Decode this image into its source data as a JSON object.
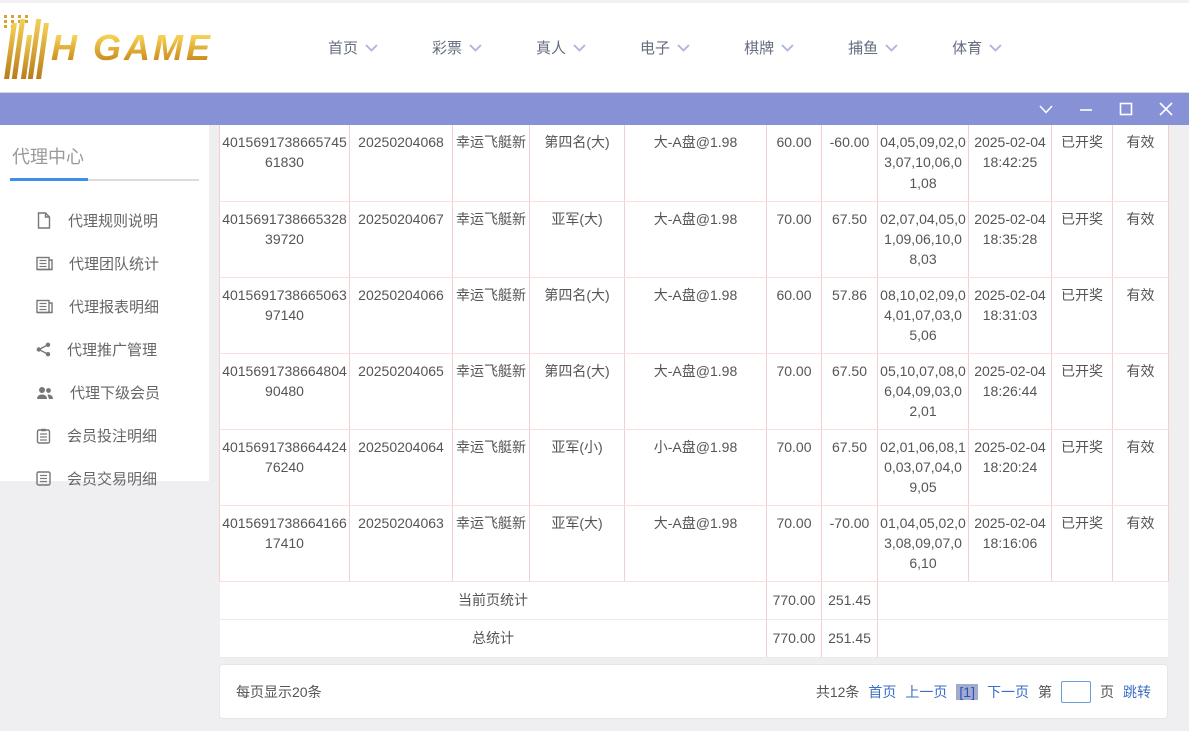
{
  "brand": {
    "logo_text": "H GAME"
  },
  "header": {
    "nav": [
      {
        "label": "首页"
      },
      {
        "label": "彩票"
      },
      {
        "label": "真人"
      },
      {
        "label": "电子"
      },
      {
        "label": "棋牌"
      },
      {
        "label": "捕鱼"
      },
      {
        "label": "体育"
      }
    ]
  },
  "titlebar": {
    "icons": [
      "chevron-down-icon",
      "minimize-icon",
      "maximize-icon",
      "close-icon"
    ]
  },
  "sidebar": {
    "title": "代理中心",
    "items": [
      {
        "label": "代理规则说明",
        "icon": "file-icon"
      },
      {
        "label": "代理团队统计",
        "icon": "news-icon"
      },
      {
        "label": "代理报表明细",
        "icon": "news-icon"
      },
      {
        "label": "代理推广管理",
        "icon": "share-icon"
      },
      {
        "label": "代理下级会员",
        "icon": "users-icon"
      },
      {
        "label": "会员投注明细",
        "icon": "clipboard-icon"
      },
      {
        "label": "会员交易明细",
        "icon": "list-icon"
      }
    ]
  },
  "table": {
    "rows": [
      [
        "401569173866574561830",
        "20250204068",
        "幸运飞艇新",
        "第四名(大)",
        "大-A盘@1.98",
        "60.00",
        "-60.00",
        "04,05,09,02,03,07,10,06,01,08",
        "2025-02-04 18:42:25",
        "已开奖",
        "有效"
      ],
      [
        "401569173866532839720",
        "20250204067",
        "幸运飞艇新",
        "亚军(大)",
        "大-A盘@1.98",
        "70.00",
        "67.50",
        "02,07,04,05,01,09,06,10,08,03",
        "2025-02-04 18:35:28",
        "已开奖",
        "有效"
      ],
      [
        "401569173866506397140",
        "20250204066",
        "幸运飞艇新",
        "第四名(大)",
        "大-A盘@1.98",
        "60.00",
        "57.86",
        "08,10,02,09,04,01,07,03,05,06",
        "2025-02-04 18:31:03",
        "已开奖",
        "有效"
      ],
      [
        "401569173866480490480",
        "20250204065",
        "幸运飞艇新",
        "第四名(大)",
        "大-A盘@1.98",
        "70.00",
        "67.50",
        "05,10,07,08,06,04,09,03,02,01",
        "2025-02-04 18:26:44",
        "已开奖",
        "有效"
      ],
      [
        "401569173866442476240",
        "20250204064",
        "幸运飞艇新",
        "亚军(小)",
        "小-A盘@1.98",
        "70.00",
        "67.50",
        "02,01,06,08,10,03,07,04,09,05",
        "2025-02-04 18:20:24",
        "已开奖",
        "有效"
      ],
      [
        "401569173866416617410",
        "20250204063",
        "幸运飞艇新",
        "亚军(大)",
        "大-A盘@1.98",
        "70.00",
        "-70.00",
        "01,04,05,02,03,08,09,07,06,10",
        "2025-02-04 18:16:06",
        "已开奖",
        "有效"
      ]
    ],
    "summary": [
      {
        "label": "当前页统计",
        "amount": "770.00",
        "profit": "251.45"
      },
      {
        "label": "总统计",
        "amount": "770.00",
        "profit": "251.45"
      }
    ]
  },
  "footer": {
    "page_size_text": "每页显示20条",
    "total_text": "共12条",
    "first_label": "首页",
    "prev_label": "上一页",
    "current_page": "[1]",
    "next_label": "下一页",
    "jump_prefix": "第",
    "jump_suffix": "页",
    "jump_label": "跳转",
    "jump_input_value": ""
  },
  "colors": {
    "titlebar": "#8791d5",
    "gold_top": "#f6d355",
    "gold_bottom": "#c8861b",
    "link_blue": "#3a6fc4",
    "accent_blue": "#3f8fe8",
    "table_border_pink": "#f3cfcf"
  }
}
